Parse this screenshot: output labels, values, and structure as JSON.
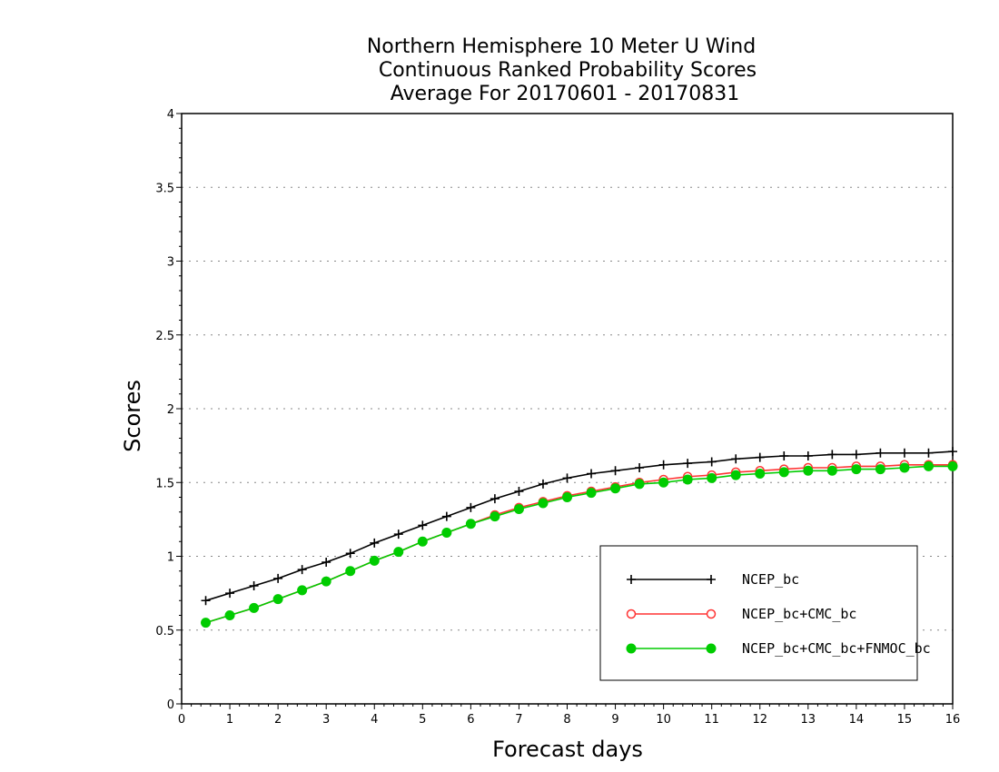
{
  "chart_data": {
    "type": "line",
    "title": [
      "Northern Hemisphere 10 Meter U Wind",
      "Continuous Ranked Probability Scores",
      "Average For 20170601 - 20170831"
    ],
    "xlabel": "Forecast days",
    "ylabel": "Scores",
    "xlim": [
      0,
      16
    ],
    "ylim": [
      0,
      4
    ],
    "xticks": [
      "0",
      "1",
      "2",
      "3",
      "4",
      "5",
      "6",
      "7",
      "8",
      "9",
      "10",
      "11",
      "12",
      "13",
      "14",
      "15",
      "16"
    ],
    "yticks": [
      "0",
      "0.5",
      "1",
      "1.5",
      "2",
      "2.5",
      "3",
      "3.5",
      "4"
    ],
    "grid": true,
    "legend_position": "lower-right",
    "x": [
      0.5,
      1,
      1.5,
      2,
      2.5,
      3,
      3.5,
      4,
      4.5,
      5,
      5.5,
      6,
      6.5,
      7,
      7.5,
      8,
      8.5,
      9,
      9.5,
      10,
      10.5,
      11,
      11.5,
      12,
      12.5,
      13,
      13.5,
      14,
      14.5,
      15,
      15.5,
      16
    ],
    "series": [
      {
        "name": "NCEP_bc",
        "color": "#000000",
        "marker": "plus",
        "values": [
          0.7,
          0.75,
          0.8,
          0.85,
          0.91,
          0.96,
          1.02,
          1.09,
          1.15,
          1.21,
          1.27,
          1.33,
          1.39,
          1.44,
          1.49,
          1.53,
          1.56,
          1.58,
          1.6,
          1.62,
          1.63,
          1.64,
          1.66,
          1.67,
          1.68,
          1.68,
          1.69,
          1.69,
          1.7,
          1.7,
          1.7,
          1.71
        ]
      },
      {
        "name": "NCEP_bc+CMC_bc",
        "color": "#ff3333",
        "marker": "open-circle",
        "values": [
          0.55,
          0.6,
          0.65,
          0.71,
          0.77,
          0.83,
          0.9,
          0.97,
          1.03,
          1.1,
          1.16,
          1.22,
          1.28,
          1.33,
          1.37,
          1.41,
          1.44,
          1.47,
          1.5,
          1.52,
          1.54,
          1.55,
          1.57,
          1.58,
          1.59,
          1.6,
          1.6,
          1.61,
          1.61,
          1.62,
          1.62,
          1.62
        ]
      },
      {
        "name": "NCEP_bc+CMC_bc+FNMOC_bc",
        "color": "#00cc00",
        "marker": "filled-circle",
        "values": [
          0.55,
          0.6,
          0.65,
          0.71,
          0.77,
          0.83,
          0.9,
          0.97,
          1.03,
          1.1,
          1.16,
          1.22,
          1.27,
          1.32,
          1.36,
          1.4,
          1.43,
          1.46,
          1.49,
          1.5,
          1.52,
          1.53,
          1.55,
          1.56,
          1.57,
          1.58,
          1.58,
          1.59,
          1.59,
          1.6,
          1.61,
          1.61
        ]
      }
    ]
  }
}
